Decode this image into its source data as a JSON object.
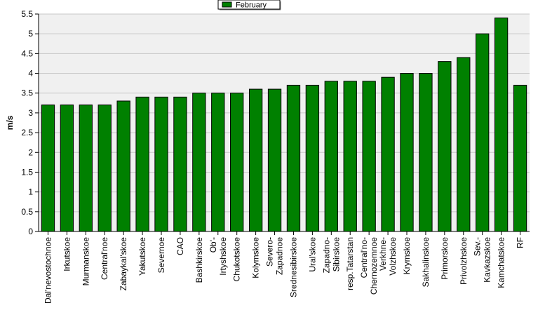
{
  "chart_data": {
    "type": "bar",
    "ylabel": "m/s",
    "ylim": [
      0,
      5.5
    ],
    "yticks": [
      "0",
      "0.5",
      "1",
      "1.5",
      "2",
      "2.5",
      "3",
      "3.5",
      "4",
      "4.5",
      "5",
      "5.5"
    ],
    "grid": true,
    "legend_position": "top-center",
    "series": [
      {
        "name": "February",
        "color": "#008000",
        "values": [
          3.2,
          3.2,
          3.2,
          3.2,
          3.3,
          3.4,
          3.4,
          3.4,
          3.5,
          3.5,
          3.5,
          3.6,
          3.6,
          3.7,
          3.7,
          3.8,
          3.8,
          3.8,
          3.9,
          4.0,
          4.0,
          4.3,
          4.4,
          5.0,
          5.4,
          3.7
        ]
      }
    ],
    "categories": [
      [
        "Dal'nevostochnoe"
      ],
      [
        "Irkutskoe"
      ],
      [
        "Murmanskoe"
      ],
      [
        "Central'noe"
      ],
      [
        "Zabaykal'skoe"
      ],
      [
        "Yakutskoe"
      ],
      [
        "Severnoe"
      ],
      [
        "CAO"
      ],
      [
        "Bashkirskoe"
      ],
      [
        "Ob'-",
        "Irtyshskoe"
      ],
      [
        "Chukotskoe"
      ],
      [
        "Kolymskoe"
      ],
      [
        "Severo-",
        "Zapadnoe"
      ],
      [
        "Srednesibirskoe"
      ],
      [
        "Ural'skoe"
      ],
      [
        "Zapadno-",
        "Sibirskoe"
      ],
      [
        "resp.Tatarstan"
      ],
      [
        "Central'no-",
        "Chernozemnoe"
      ],
      [
        "Verkhne-",
        "Volzhskoe"
      ],
      [
        "Krymskoe"
      ],
      [
        "Sakhalinskoe"
      ],
      [
        "Primorskoe"
      ],
      [
        "Privolzhskoe"
      ],
      [
        "Sev.-",
        "Kavkazskoe"
      ],
      [
        "Kamchatskoe"
      ],
      [
        "RF"
      ]
    ]
  }
}
